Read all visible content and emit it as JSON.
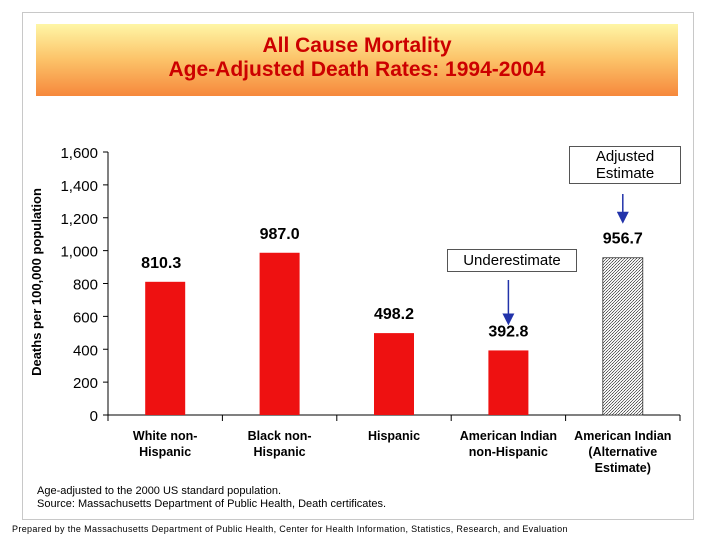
{
  "chart_data": {
    "type": "bar",
    "title": "All Cause Mortality",
    "subtitle": "Age-Adjusted Death Rates: 1994-2004",
    "ylabel": "Deaths per 100,000 population",
    "xlabel": "",
    "ylim": [
      0,
      1600
    ],
    "yticks": [
      0,
      200,
      400,
      600,
      800,
      1000,
      1200,
      1400,
      1600
    ],
    "ytick_labels": [
      "0",
      "200",
      "400",
      "600",
      "800",
      "1,000",
      "1,200",
      "1,400",
      "1,600"
    ],
    "grid": false,
    "categories": [
      [
        "White non-",
        "Hispanic"
      ],
      [
        "Black non-",
        "Hispanic"
      ],
      [
        "Hispanic"
      ],
      [
        "American Indian",
        "non-Hispanic"
      ],
      [
        "American Indian",
        "(Alternative",
        "Estimate)"
      ]
    ],
    "values": [
      810.3,
      987.0,
      498.2,
      392.8,
      956.7
    ],
    "value_labels": [
      "810.3",
      "987.0",
      "498.2",
      "392.8",
      "956.7"
    ],
    "bar_styles": [
      "solid",
      "solid",
      "solid",
      "solid",
      "hatched"
    ],
    "bar_color": "#ee1111",
    "hatched_color": "#888888",
    "annotations": [
      {
        "text": "Underestimate",
        "target_index": 3
      },
      {
        "text": [
          "Adjusted",
          "Estimate"
        ],
        "target_index": 4
      }
    ]
  },
  "note_lines": [
    "Age-adjusted to the 2000 US standard population.",
    "Source: Massachusetts Department of Public Health, Death certificates."
  ],
  "footer": "Prepared by the Massachusetts Department of Public Health, Center for Health Information, Statistics, Research, and Evaluation",
  "colors": {
    "title_text": "#cc0000",
    "arrow": "#2233aa"
  }
}
